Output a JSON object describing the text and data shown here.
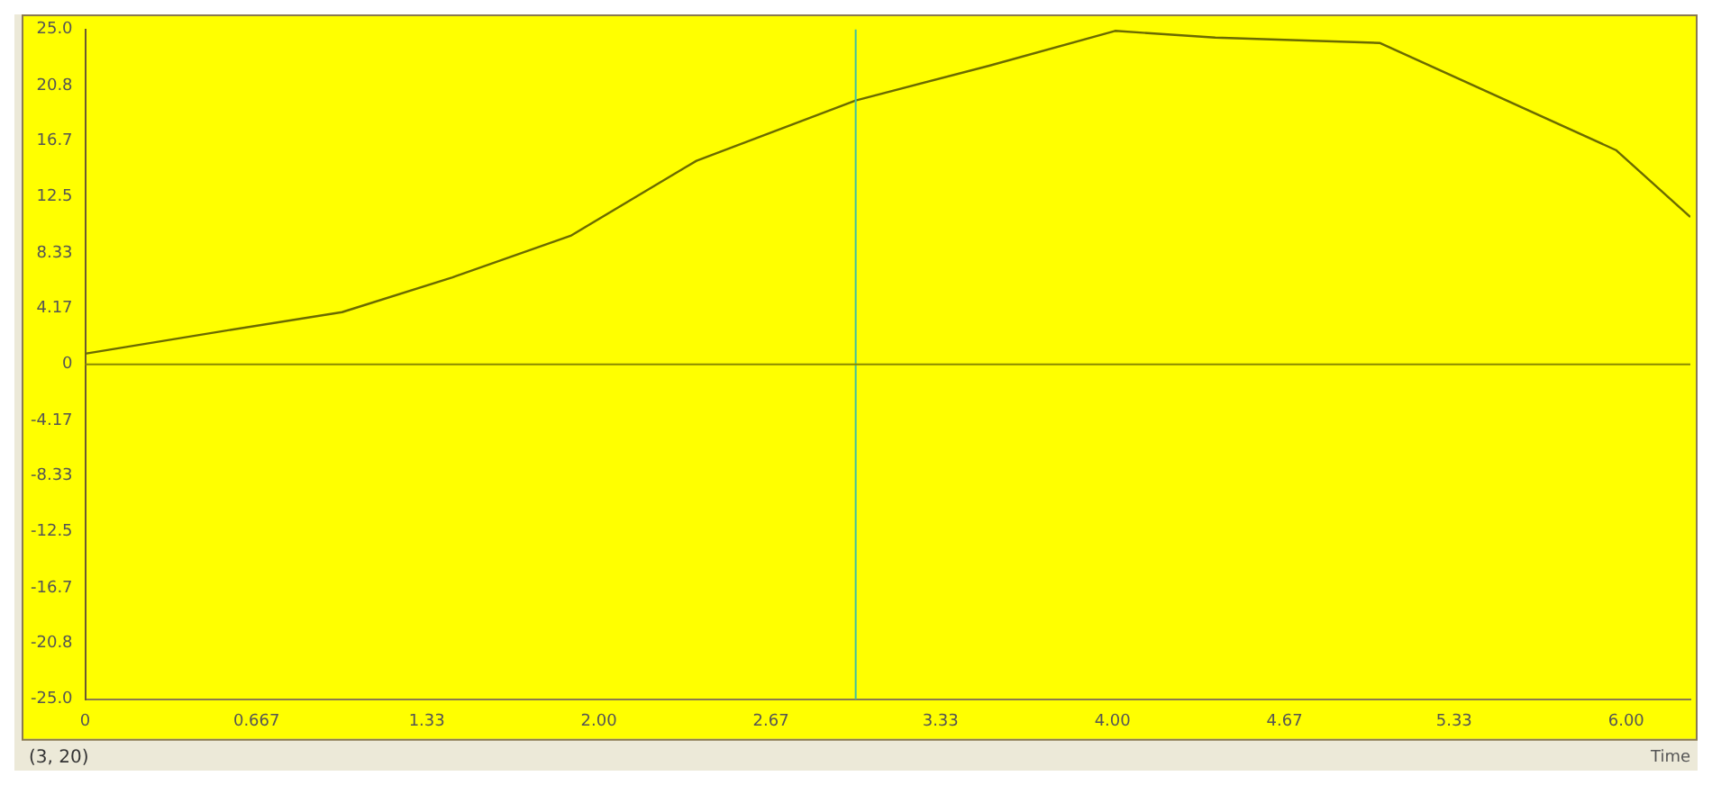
{
  "chart_data": {
    "type": "line",
    "xlabel": "Time",
    "annotations": [
      "(3, 20)"
    ],
    "x": [
      0,
      0.54,
      1.0,
      1.43,
      1.89,
      2.38,
      3.0,
      3.52,
      4.01,
      4.4,
      5.04,
      5.96,
      6.25
    ],
    "series": [
      {
        "color": "#6b6b00",
        "values": [
          0.8,
          2.5,
          3.9,
          6.5,
          9.6,
          15.2,
          19.7,
          22.3,
          24.9,
          24.4,
          24.0,
          16.0,
          11.0
        ]
      }
    ],
    "xlim": [
      0,
      6.25
    ],
    "xticks": [
      {
        "value": 0,
        "label": "0"
      },
      {
        "value": 0.667,
        "label": "0.667"
      },
      {
        "value": 1.33,
        "label": "1.33"
      },
      {
        "value": 2,
        "label": "2.00"
      },
      {
        "value": 2.67,
        "label": "2.67"
      },
      {
        "value": 3.33,
        "label": "3.33"
      },
      {
        "value": 4,
        "label": "4.00"
      },
      {
        "value": 4.67,
        "label": "4.67"
      },
      {
        "value": 5.33,
        "label": "5.33"
      },
      {
        "value": 6,
        "label": "6.00"
      }
    ],
    "ylim": [
      -25,
      25
    ],
    "yticks": [
      {
        "value": -25,
        "label": "-25.0"
      },
      -20.8,
      -16.7,
      -12.5,
      -8.33,
      -4.17,
      0,
      4.17,
      8.33,
      12.5,
      16.7,
      20.8,
      {
        "value": 25,
        "label": "25.0"
      }
    ],
    "ref_lines": [
      {
        "axis": "x",
        "value": 3,
        "color": "#40c0a0"
      },
      {
        "axis": "y",
        "value": 0,
        "color": "#8a8a00"
      }
    ],
    "grid": false,
    "legend": false,
    "marker": "none",
    "line_style": "solid"
  }
}
